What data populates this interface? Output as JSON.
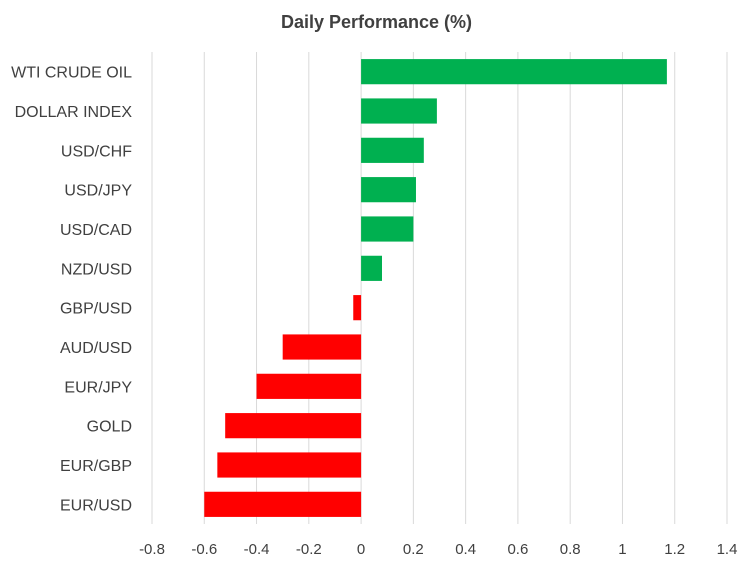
{
  "chart_data": {
    "type": "bar",
    "orientation": "horizontal",
    "title": "Daily Performance  (%)",
    "xlabel": "",
    "ylabel": "",
    "xlim": [
      -0.8,
      1.4
    ],
    "x_ticks": [
      "-0.8",
      "-0.6",
      "-0.4",
      "-0.2",
      "0",
      "0.2",
      "0.4",
      "0.6",
      "0.8",
      "1",
      "1.2",
      "1.4"
    ],
    "grid": "vertical",
    "categories": [
      "WTI CRUDE OIL",
      "DOLLAR INDEX",
      "USD/CHF",
      "USD/JPY",
      "USD/CAD",
      "NZD/USD",
      "GBP/USD",
      "AUD/USD",
      "EUR/JPY",
      "GOLD",
      "EUR/GBP",
      "EUR/USD"
    ],
    "values": [
      1.17,
      0.29,
      0.24,
      0.21,
      0.2,
      0.08,
      -0.03,
      -0.3,
      -0.4,
      -0.52,
      -0.55,
      -0.6
    ],
    "colors": {
      "positive": "#00b050",
      "negative": "#ff0000",
      "grid": "#d9d9d9",
      "text": "#404040"
    }
  }
}
